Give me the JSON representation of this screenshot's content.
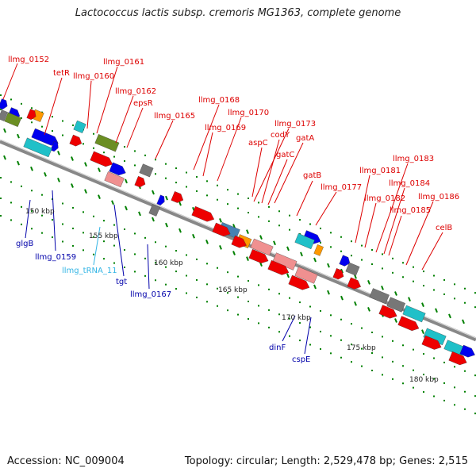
{
  "header": {
    "title": "Lactococcus lactis subsp. cremoris MG1363, complete genome"
  },
  "footer": {
    "accession": "Accession: NC_009004",
    "topology": "Topology: circular; Length: 2,529,478 bp; Genes: 2,515"
  },
  "colors": {
    "label_top": "#dd0000",
    "label_bottom": "#0000aa",
    "label_trna": "#33b5e5",
    "cds": "#ee0000",
    "cds_pale": "#f09090",
    "teal": "#20c0c8",
    "olive": "#6b8e23",
    "blue": "#0000ee",
    "grey": "#777777",
    "orange": "#ff9900",
    "steel": "#4682b4",
    "tick": "#008000",
    "backbone": "#888888"
  },
  "scale_labels": [
    "150 kbp",
    "155 kbp",
    "160 kbp",
    "165 kbp",
    "170 kbp",
    "175 kbp",
    "180 kbp"
  ],
  "top_labels": [
    "llmg_0152",
    "tetR",
    "llmg_0160",
    "llmg_0161",
    "llmg_0162",
    "epsR",
    "llmg_0165",
    "llmg_0168",
    "llmg_0169",
    "llmg_0170",
    "aspC",
    "llmg_0173",
    "codY",
    "gatA",
    "gatC",
    "gatB",
    "llmg_0177",
    "llmg_0181",
    "llmg_0183",
    "llmg_0184",
    "llmg_0182",
    "llmg_0186",
    "llmg_0185",
    "celB"
  ],
  "bottom_labels": [
    "glgB",
    "llmg_0159",
    "llmg_tRNA_11",
    "tgt",
    "llmg_0167",
    "dinF",
    "cspE"
  ]
}
